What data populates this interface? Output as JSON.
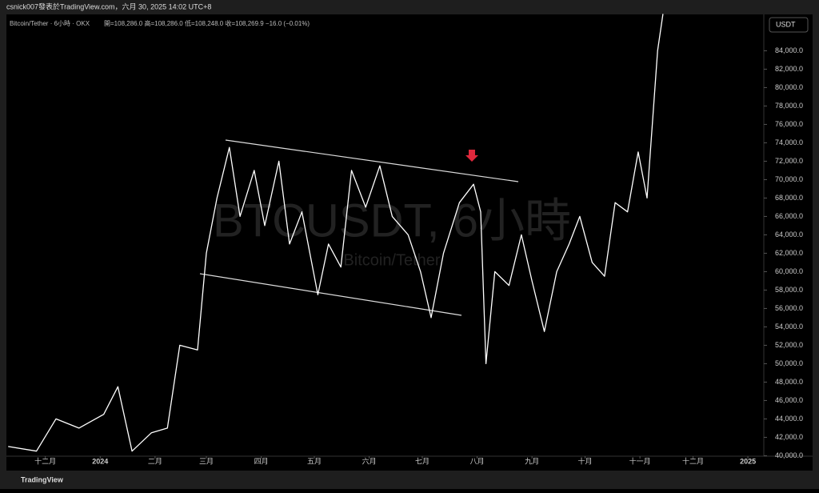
{
  "header": "csnick007發表於TradingView.com，六月 30, 2025 14:02 UTC+8",
  "footer": "TradingView",
  "chart_data": {
    "type": "line",
    "title": "Bitcoin/Tether · 6小時 · OKX",
    "subtitle": "開=108,286.0 高=108,286.0 低=108,248.0 收=108,269.9 −16.0 (−0.01%)",
    "watermark": "BTCUSDT, 6小時",
    "watermark_sub": "Bitcoin/Tether",
    "currency": "USDT",
    "color": "#ffffff",
    "grid": false,
    "x": [
      -21,
      -5,
      6,
      19,
      33,
      41,
      49,
      60,
      69,
      76,
      86,
      91,
      97,
      104,
      110,
      118,
      124,
      132,
      138,
      145,
      154,
      160,
      167,
      173,
      181,
      189,
      196,
      205,
      212,
      218,
      225,
      234,
      242,
      246,
      249,
      254,
      262,
      269,
      275,
      282,
      289,
      296,
      302,
      309,
      316,
      322,
      329,
      335,
      340,
      343,
      346,
      349
    ],
    "values": [
      41000,
      40500,
      44000,
      43000,
      44500,
      47500,
      40500,
      42500,
      43000,
      52000,
      51500,
      62000,
      68000,
      73500,
      66000,
      71000,
      65000,
      72000,
      63000,
      66500,
      57500,
      63000,
      60500,
      71000,
      67000,
      71500,
      66000,
      64000,
      60000,
      55000,
      62000,
      67500,
      69500,
      66500,
      50000,
      60000,
      58500,
      64000,
      59000,
      53500,
      60000,
      63000,
      66000,
      61000,
      59500,
      67500,
      66500,
      73000,
      68000,
      76000,
      84000,
      88000
    ],
    "xlim": [
      -22,
      406
    ],
    "xticks": [
      {
        "value": 0,
        "label": "十二月"
      },
      {
        "value": 31,
        "label": "2024"
      },
      {
        "value": 62,
        "label": "二月"
      },
      {
        "value": 91,
        "label": "三月"
      },
      {
        "value": 122,
        "label": "四月"
      },
      {
        "value": 152,
        "label": "五月"
      },
      {
        "value": 183,
        "label": "六月"
      },
      {
        "value": 213,
        "label": "七月"
      },
      {
        "value": 244,
        "label": "八月"
      },
      {
        "value": 275,
        "label": "九月"
      },
      {
        "value": 305,
        "label": "十月"
      },
      {
        "value": 336,
        "label": "十一月"
      },
      {
        "value": 366,
        "label": "十二月"
      },
      {
        "value": 397,
        "label": "2025"
      }
    ],
    "ylim": [
      39950,
      87950
    ],
    "yticks": [
      {
        "value": 40000,
        "label": "40,000.0"
      },
      {
        "value": 42000,
        "label": "42,000.0"
      },
      {
        "value": 44000,
        "label": "44,000.0"
      },
      {
        "value": 46000,
        "label": "46,000.0"
      },
      {
        "value": 48000,
        "label": "48,000.0"
      },
      {
        "value": 50000,
        "label": "50,000.0"
      },
      {
        "value": 52000,
        "label": "52,000.0"
      },
      {
        "value": 54000,
        "label": "54,000.0"
      },
      {
        "value": 56000,
        "label": "56,000.0"
      },
      {
        "value": 58000,
        "label": "58,000.0"
      },
      {
        "value": 60000,
        "label": "60,000.0"
      },
      {
        "value": 62000,
        "label": "62,000.0"
      },
      {
        "value": 64000,
        "label": "64,000.0"
      },
      {
        "value": 66000,
        "label": "66,000.0"
      },
      {
        "value": 68000,
        "label": "68,000.0"
      },
      {
        "value": 70000,
        "label": "70,000.0"
      },
      {
        "value": 72000,
        "label": "72,000.0"
      },
      {
        "value": 74000,
        "label": "74,000.0"
      },
      {
        "value": 76000,
        "label": "76,000.0"
      },
      {
        "value": 78000,
        "label": "78,000.0"
      },
      {
        "value": 80000,
        "label": "80,000.0"
      },
      {
        "value": 82000,
        "label": "82,000.0"
      },
      {
        "value": 84000,
        "label": "84,000.0"
      }
    ]
  }
}
